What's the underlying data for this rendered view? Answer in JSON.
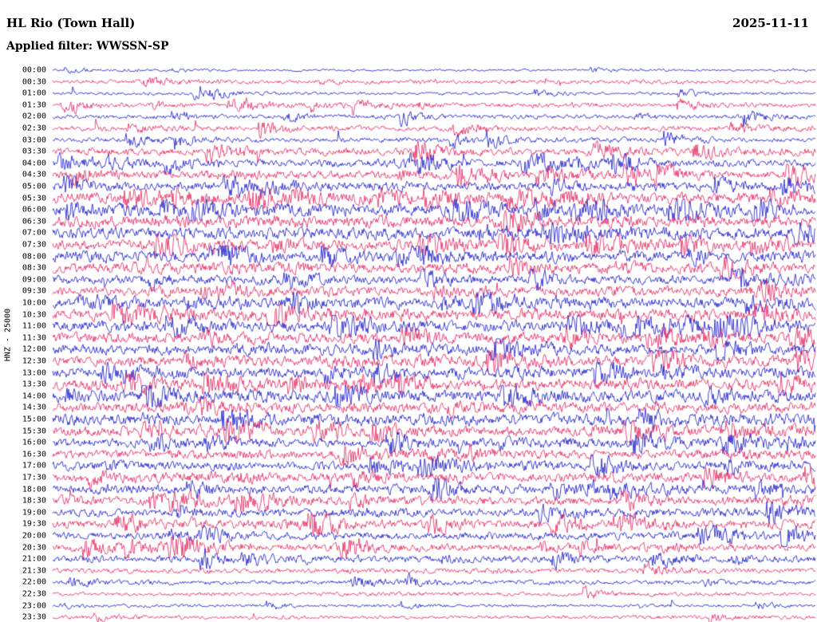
{
  "header": {
    "station_title": "HL Rio (Town Hall)",
    "date": "2025-11-11",
    "filter_label": "Applied filter: WWSSN-SP"
  },
  "axis": {
    "channel_label": "HNZ - 25000"
  },
  "chart_data": {
    "type": "line",
    "subtype": "helicorder-seismogram",
    "title": "HL Rio (Town Hall)",
    "date": "2025-11-11",
    "station": "HL Rio (Town Hall)",
    "channel": "HNZ",
    "scale": 25000,
    "filter": "WWSSN-SP",
    "rows": 48,
    "minutes_per_row": 30,
    "row_start_times": [
      "00:00",
      "00:30",
      "01:00",
      "01:30",
      "02:00",
      "02:30",
      "03:00",
      "03:30",
      "04:00",
      "04:30",
      "05:00",
      "05:30",
      "06:00",
      "06:30",
      "07:00",
      "07:30",
      "08:00",
      "08:30",
      "09:00",
      "09:30",
      "10:00",
      "10:30",
      "11:00",
      "11:30",
      "12:00",
      "12:30",
      "13:00",
      "13:30",
      "14:00",
      "14:30",
      "15:00",
      "15:30",
      "16:00",
      "16:30",
      "17:00",
      "17:30",
      "18:00",
      "18:30",
      "19:00",
      "19:30",
      "20:00",
      "20:30",
      "21:00",
      "21:30",
      "22:00",
      "22:30",
      "23:00",
      "23:30"
    ],
    "trace_colors": [
      "#1414cd",
      "#e6215a"
    ],
    "color_pattern": "rows alternate blue (even) and crimson (odd) every 30 minutes starting with blue at 00:00",
    "amplitude_profile": [
      0.15,
      0.28,
      0.2,
      0.3,
      0.3,
      0.35,
      0.3,
      0.5,
      0.52,
      0.55,
      0.6,
      0.8,
      0.8,
      0.8,
      0.8,
      0.75,
      0.72,
      0.7,
      0.62,
      0.62,
      0.75,
      0.8,
      0.8,
      0.75,
      0.72,
      0.75,
      0.72,
      0.8,
      0.8,
      0.75,
      0.8,
      0.7,
      0.62,
      0.62,
      0.62,
      0.65,
      0.62,
      0.6,
      0.55,
      0.6,
      0.52,
      0.5,
      0.45,
      0.35,
      0.3,
      0.25,
      0.2,
      0.25
    ],
    "legend_position": "none",
    "grid": false,
    "description": "24-hour helicorder drum record: 48 half-hour noise traces with intermittent seismic bursts; quiet near 00:00-02:30 and 22:00-23:30, strongest continuous activity ~05:30-15:30.",
    "render_seed": 20251111
  }
}
